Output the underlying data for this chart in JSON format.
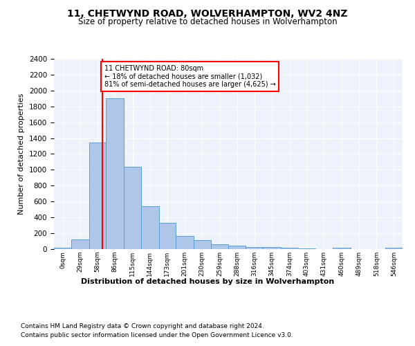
{
  "title": "11, CHETWYND ROAD, WOLVERHAMPTON, WV2 4NZ",
  "subtitle": "Size of property relative to detached houses in Wolverhampton",
  "xlabel": "Distribution of detached houses by size in Wolverhampton",
  "ylabel": "Number of detached properties",
  "bar_color": "#aec6e8",
  "bar_edge_color": "#5a9fd4",
  "background_color": "#eef2fb",
  "grid_color": "#ffffff",
  "annotation_text": "11 CHETWYND ROAD: 80sqm\n← 18% of detached houses are smaller (1,032)\n81% of semi-detached houses are larger (4,625) →",
  "vline_x": 80,
  "vline_color": "red",
  "bin_edges": [
    0,
    29,
    58,
    86,
    115,
    144,
    173,
    201,
    230,
    259,
    288,
    316,
    345,
    374,
    403,
    431,
    460,
    489,
    518,
    546,
    575
  ],
  "bar_heights": [
    15,
    120,
    1340,
    1900,
    1040,
    540,
    335,
    165,
    110,
    60,
    40,
    30,
    25,
    20,
    10,
    0,
    20,
    0,
    0,
    15
  ],
  "ylim": [
    0,
    2400
  ],
  "yticks": [
    0,
    200,
    400,
    600,
    800,
    1000,
    1200,
    1400,
    1600,
    1800,
    2000,
    2200,
    2400
  ],
  "footer_line1": "Contains HM Land Registry data © Crown copyright and database right 2024.",
  "footer_line2": "Contains public sector information licensed under the Open Government Licence v3.0."
}
